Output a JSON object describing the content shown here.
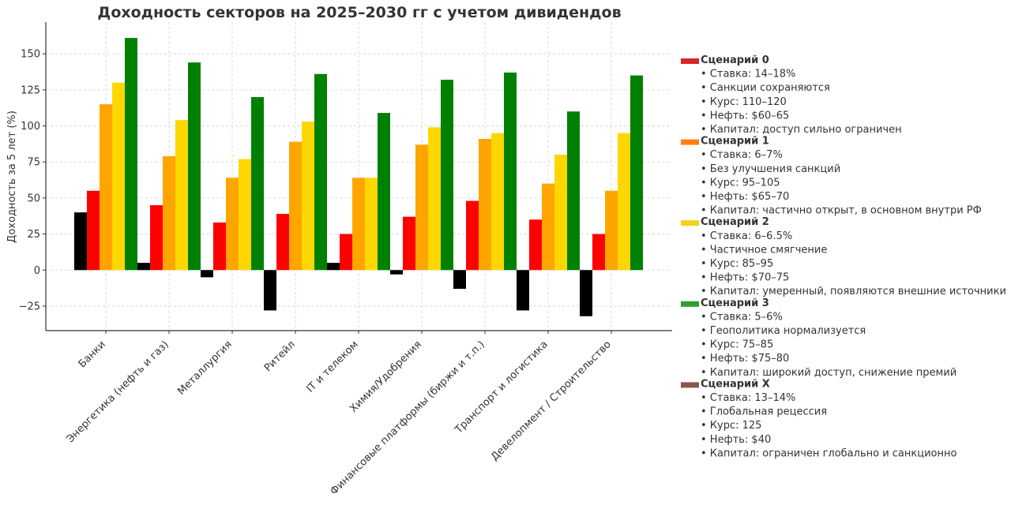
{
  "chart_data": {
    "type": "bar",
    "title": "Доходность секторов на 2025–2030 гг с учетом дивидендов",
    "ylabel": "Доходность за 5 лет (%)",
    "xlabel": "",
    "ylim": [
      -42,
      172
    ],
    "yticks": [
      -25,
      0,
      25,
      50,
      75,
      100,
      125,
      150
    ],
    "grid": true,
    "legend_position": "right",
    "categories": [
      "Банки",
      "Энергетика (нефть и газ)",
      "Металлургия",
      "Ритейл",
      "IT и телеком",
      "Химия/Удобрения",
      "Финансовые платформы (биржи и т.п.)",
      "Транспорт и логистика",
      "Девелопмент / Строительство"
    ],
    "series": [
      {
        "values": [
          40,
          5,
          -5,
          -28,
          5,
          -3,
          -13,
          -28,
          -32
        ],
        "color": "#000000"
      },
      {
        "values": [
          55,
          45,
          33,
          39,
          25,
          37,
          48,
          35,
          25
        ],
        "color": "#ff0000"
      },
      {
        "values": [
          115,
          79,
          64,
          89,
          64,
          87,
          91,
          60,
          55
        ],
        "color": "#ffa500"
      },
      {
        "values": [
          130,
          104,
          77,
          103,
          64,
          99,
          95,
          80,
          95
        ],
        "color": "#ffd700"
      },
      {
        "values": [
          161,
          144,
          120,
          136,
          109,
          132,
          137,
          110,
          135
        ],
        "color": "#008000"
      }
    ],
    "legend": [
      {
        "name": "Сценарий 0",
        "color": "#d62728",
        "lines": [
          "• Ставка: 14–18%",
          "• Санкции сохраняются",
          "• Курс: 110–120",
          "• Нефть: $60–65",
          "• Капитал: доступ сильно ограничен"
        ]
      },
      {
        "name": "Сценарий 1",
        "color": "#ff7f0e",
        "lines": [
          "• Ставка: 6–7%",
          "• Без улучшения санкций",
          "• Курс: 95–105",
          "• Нефть: $65–70",
          "• Капитал: частично открыт, в основном внутри РФ"
        ]
      },
      {
        "name": "Сценарий 2",
        "color": "#f4d21c",
        "lines": [
          "• Ставка: 6–6.5%",
          "• Частичное смягчение",
          "• Курс: 85–95",
          "• Нефть: $70–75",
          "• Капитал: умеренный, появляются внешние источники"
        ]
      },
      {
        "name": "Сценарий 3",
        "color": "#2ca02c",
        "lines": [
          "• Ставка: 5–6%",
          "• Геополитика нормализуется",
          "• Курс: 75–85",
          "• Нефть: $75–80",
          "• Капитал: широкий доступ, снижение премий"
        ]
      },
      {
        "name": "Сценарий X",
        "color": "#8c564b",
        "lines": [
          "• Ставка: 13–14%",
          "• Глобальная рецессия",
          "• Курс: 125",
          "• Нефть: $40",
          "• Капитал: ограничен глобально и санкционно"
        ]
      }
    ]
  }
}
